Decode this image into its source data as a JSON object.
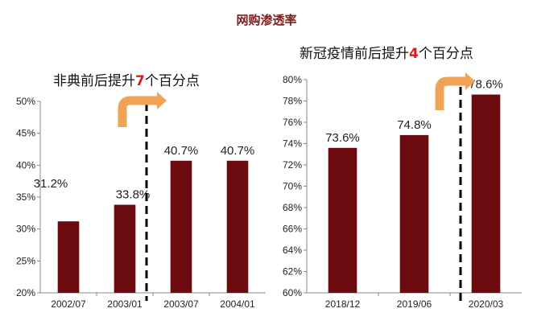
{
  "title": "网购渗透率",
  "chart_data": [
    {
      "type": "bar",
      "title_parts": [
        "非典前后提升",
        "7",
        "个百分点"
      ],
      "categories": [
        "2002/07",
        "2003/01",
        "2003/07",
        "2004/01"
      ],
      "values": [
        31.2,
        33.8,
        40.7,
        40.7
      ],
      "value_labels": [
        "31.2%",
        "33.8%",
        "40.7%",
        "40.7%"
      ],
      "ylim": [
        20,
        50
      ],
      "yticks": [
        "20%",
        "25%",
        "30%",
        "35%",
        "40%",
        "45%",
        "50%"
      ],
      "grid": false,
      "bar_color": "#6b0a0f",
      "arrow_color": "#f0a256"
    },
    {
      "type": "bar",
      "title_parts": [
        "新冠疫情前后提升",
        "4",
        "个百分点"
      ],
      "categories": [
        "2018/12",
        "2019/06",
        "2020/03"
      ],
      "values": [
        73.6,
        74.8,
        78.6
      ],
      "value_labels": [
        "73.6%",
        "74.8%",
        "78.6%"
      ],
      "ylim": [
        60,
        80
      ],
      "yticks": [
        "60%",
        "62%",
        "64%",
        "66%",
        "68%",
        "70%",
        "72%",
        "74%",
        "76%",
        "78%",
        "80%"
      ],
      "grid": false,
      "bar_color": "#6b0a0f",
      "arrow_color": "#f0a256"
    }
  ]
}
